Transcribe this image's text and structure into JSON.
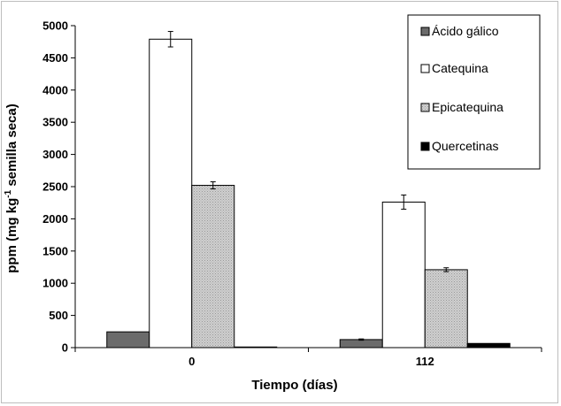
{
  "chart_data": {
    "type": "bar",
    "xlabel": "Tiempo (días)",
    "ylabel": {
      "main": "ppm (mg kg",
      "superscript": "-1",
      "rest": " semilla seca)"
    },
    "ylim": [
      0,
      5000
    ],
    "yticks": [
      0,
      500,
      1000,
      1500,
      2000,
      2500,
      3000,
      3500,
      4000,
      4500,
      5000
    ],
    "categories": [
      "0",
      "112"
    ],
    "grid": false,
    "legend_position": "top-right",
    "series": [
      {
        "name": "Ácido gálico",
        "color": "#6b6b6b",
        "pattern": "solid",
        "values": [
          245,
          125
        ],
        "errors": [
          0,
          10
        ]
      },
      {
        "name": "Catequina",
        "color": "#ffffff",
        "pattern": "solid",
        "values": [
          4790,
          2260
        ],
        "errors": [
          120,
          110
        ]
      },
      {
        "name": "Epicatequina",
        "color": "#c4c4c4",
        "pattern": "dotted",
        "values": [
          2520,
          1210
        ],
        "errors": [
          55,
          30
        ]
      },
      {
        "name": "Quercetinas",
        "color": "#000000",
        "pattern": "solid",
        "values": [
          10,
          65
        ],
        "errors": [
          0,
          0
        ]
      }
    ]
  }
}
